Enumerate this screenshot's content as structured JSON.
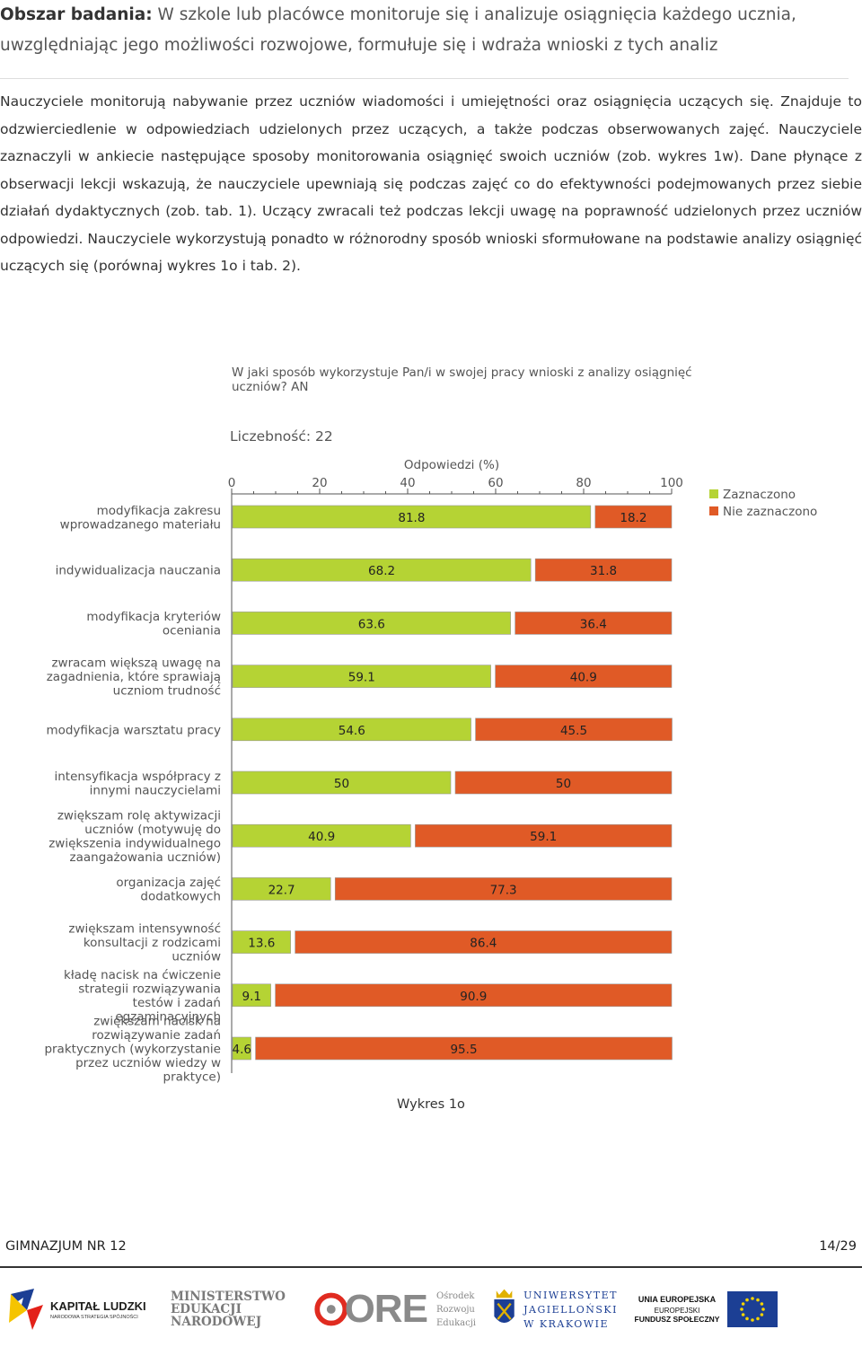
{
  "header": {
    "label": "Obszar badania:",
    "text": "W szkole lub placówce monitoruje się i analizuje osiągnięcia każdego ucznia, uwzględniając jego możliwości rozwojowe, formułuje się i wdraża wnioski z tych analiz"
  },
  "paragraph": "Nauczyciele monitorują nabywanie przez uczniów wiadomości i umiejętności oraz osiągnięcia uczących się. Znajduje to odzwierciedlenie w odpowiedziach udzielonych przez uczących, a także podczas obserwowanych zajęć. Nauczyciele zaznaczyli w ankiecie następujące sposoby monitorowania osiągnięć swoich uczniów (zob. wykres 1w). Dane płynące z obserwacji lekcji wskazują, że nauczyciele upewniają się podczas zajęć co do efektywności podejmowanych przez siebie działań dydaktycznych (zob. tab. 1). Uczący zwracali też podczas lekcji uwagę na poprawność udzielonych przez uczniów odpowiedzi. Nauczyciele wykorzystują ponadto w różnorodny sposób wnioski sformułowane na podstawie analizy osiągnięć uczących się (porównaj wykres 1o i tab. 2).",
  "chart_data": {
    "type": "bar",
    "stacked": true,
    "orientation": "horizontal",
    "title_lines": [
      "W jaki sposób wykorzystuje Pan/i w swojej pracy wnioski z analizy osiągnięć",
      "uczniów? AN"
    ],
    "count_label": "Liczebność: 22",
    "xlabel": "Odpowiedzi (%)",
    "xlim": [
      0,
      100
    ],
    "ticks": [
      0,
      20,
      40,
      60,
      80,
      100
    ],
    "categories": [
      [
        "modyfikacja zakresu",
        "wprowadzanego materiału"
      ],
      [
        "indywidualizacja nauczania"
      ],
      [
        "modyfikacja kryteriów",
        "oceniania"
      ],
      [
        "zwracam większą uwagę na",
        "zagadnienia, które sprawiają",
        "uczniom trudność"
      ],
      [
        "modyfikacja warsztatu pracy"
      ],
      [
        "intensyfikacja współpracy z",
        "innymi nauczycielami"
      ],
      [
        "zwiększam rolę aktywizacji",
        "uczniów (motywuję do",
        "zwiększenia indywidualnego",
        "zaangażowania uczniów)"
      ],
      [
        "organizacja zajęć",
        "dodatkowych"
      ],
      [
        "zwiększam intensywność",
        "konsultacji z rodzicami",
        "uczniów"
      ],
      [
        "kładę nacisk na ćwiczenie",
        "strategii rozwiązywania",
        "testów i zadań",
        "egzaminacyjnych"
      ],
      [
        "zwiększam nacisk na",
        "rozwiązywanie zadań",
        "praktycznych (wykorzystanie",
        "przez uczniów wiedzy w",
        "praktyce)"
      ]
    ],
    "series": [
      {
        "name": "Zaznaczono",
        "color": "#b5d334",
        "values": [
          81.8,
          68.2,
          63.6,
          59.1,
          54.6,
          50,
          40.9,
          22.7,
          13.6,
          9.1,
          4.6
        ]
      },
      {
        "name": "Nie zaznaczono",
        "color": "#e05a26",
        "values": [
          18.2,
          31.8,
          36.4,
          40.9,
          45.5,
          50,
          59.1,
          77.3,
          86.4,
          90.9,
          95.5
        ]
      }
    ],
    "legend": "top-right"
  },
  "caption": "Wykres 1o",
  "footer": {
    "school": "GIMNAZJUM NR 12",
    "page": "14/29"
  },
  "logos": {
    "kl_title": "KAPITAŁ LUDZKI",
    "kl_sub": "NARODOWA STRATEGIA SPÓJNOŚCI",
    "men1": "MINISTERSTWO",
    "men2": "EDUKACJI",
    "men3": "NARODOWEJ",
    "ore": "ORE",
    "ore1": "Ośrodek",
    "ore2": "Rozwoju",
    "ore3": "Edukacji",
    "uj1": "UNIWERSYTET",
    "uj2": "JAGIELLOŃSKI",
    "uj3": "W KRAKOWIE",
    "ue1": "UNIA EUROPEJSKA",
    "ue2": "EUROPEJSKI",
    "ue3": "FUNDUSZ SPOŁECZNY"
  }
}
